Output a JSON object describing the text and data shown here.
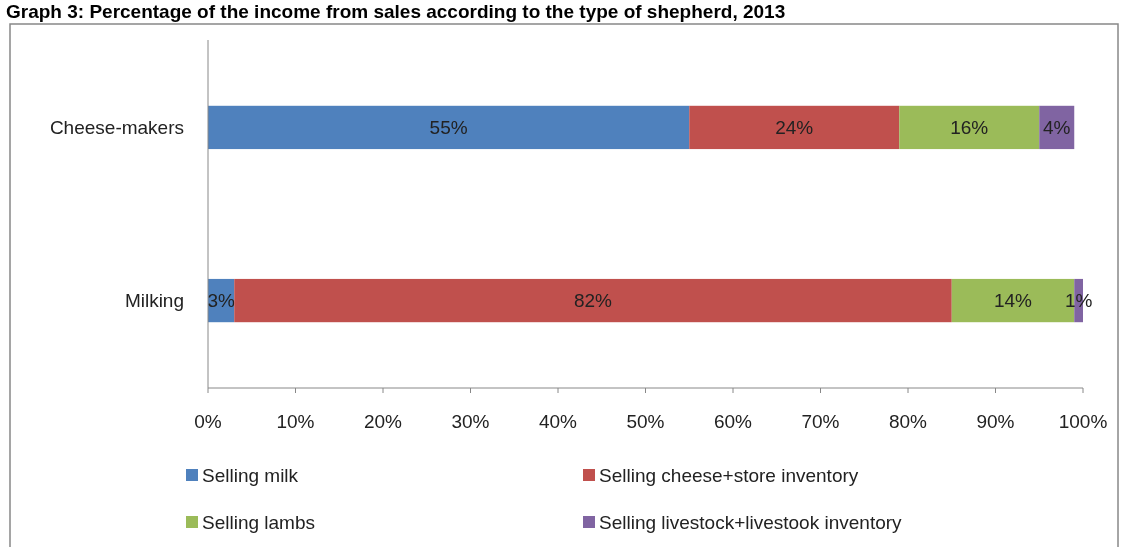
{
  "chart_data": {
    "type": "bar",
    "orientation": "horizontal",
    "stacked": true,
    "title": "Graph 3: Percentage of the income from sales according to the type of shepherd, 2013",
    "categories": [
      "Cheese-makers",
      "Milking"
    ],
    "series": [
      {
        "name": "Selling milk",
        "color": "#4f81bd",
        "values": [
          55,
          3
        ],
        "value_labels": [
          "55%",
          "3%"
        ]
      },
      {
        "name": "Selling cheese+store  inventory",
        "color": "#c0504d",
        "values": [
          24,
          82
        ],
        "value_labels": [
          "24%",
          "82%"
        ]
      },
      {
        "name": "Selling lambs",
        "color": "#9bbb59",
        "values": [
          16,
          14
        ],
        "value_labels": [
          "16%",
          "14%"
        ]
      },
      {
        "name": "Selling livestock+livestook inventory",
        "color": "#8064a2",
        "values": [
          4,
          1
        ],
        "value_labels": [
          "4%",
          "1%"
        ]
      }
    ],
    "xlim": [
      0,
      100
    ],
    "xticks": [
      {
        "value": 0,
        "label": "0%"
      },
      {
        "value": 10,
        "label": "10%"
      },
      {
        "value": 20,
        "label": "20%"
      },
      {
        "value": 30,
        "label": "30%"
      },
      {
        "value": 40,
        "label": "40%"
      },
      {
        "value": 50,
        "label": "50%"
      },
      {
        "value": 60,
        "label": "60%"
      },
      {
        "value": 70,
        "label": "70%"
      },
      {
        "value": 80,
        "label": "80%"
      },
      {
        "value": 90,
        "label": "90%"
      },
      {
        "value": 100,
        "label": "100%"
      }
    ],
    "grid": false,
    "legend": "bottom"
  }
}
